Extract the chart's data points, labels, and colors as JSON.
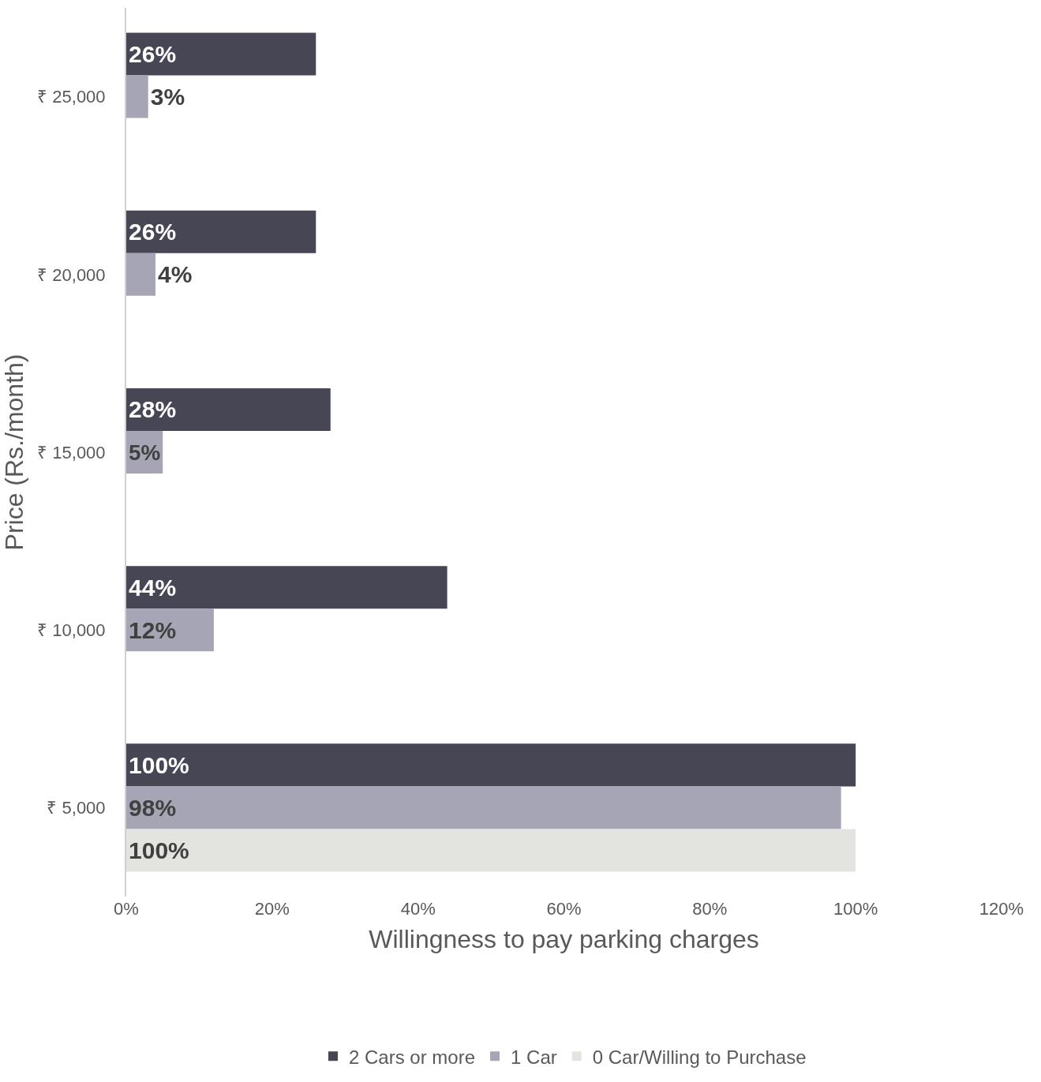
{
  "chart_data": {
    "type": "bar",
    "orientation": "horizontal",
    "xlabel": "Willingness to pay parking charges",
    "ylabel": "Price (Rs./month)",
    "categories": [
      "₹ 25,000",
      "₹ 20,000",
      "₹ 15,000",
      "₹ 10,000",
      "₹ 5,000"
    ],
    "series": [
      {
        "name": "2 Cars or more",
        "color": "#474655",
        "values": [
          26,
          26,
          28,
          44,
          100
        ],
        "value_labels": [
          "26%",
          "26%",
          "28%",
          "44%",
          "100%"
        ]
      },
      {
        "name": "1 Car",
        "color": "#a6a5b5",
        "values": [
          3,
          4,
          5,
          12,
          98
        ],
        "value_labels": [
          "3%",
          "4%",
          "5%",
          "12%",
          "98%"
        ]
      },
      {
        "name": "0 Car/Willing to Purchase",
        "color": "#e3e4df",
        "values": [
          null,
          null,
          null,
          null,
          100
        ],
        "value_labels": [
          null,
          null,
          null,
          null,
          "100%"
        ]
      }
    ],
    "xlim": [
      0,
      120
    ],
    "xticks": [
      {
        "value": 0,
        "label": "0%"
      },
      {
        "value": 20,
        "label": "20%"
      },
      {
        "value": 40,
        "label": "40%"
      },
      {
        "value": 60,
        "label": "60%"
      },
      {
        "value": 80,
        "label": "80%"
      },
      {
        "value": 100,
        "label": "100%"
      },
      {
        "value": 120,
        "label": "120%"
      }
    ],
    "legend": "bottom"
  }
}
